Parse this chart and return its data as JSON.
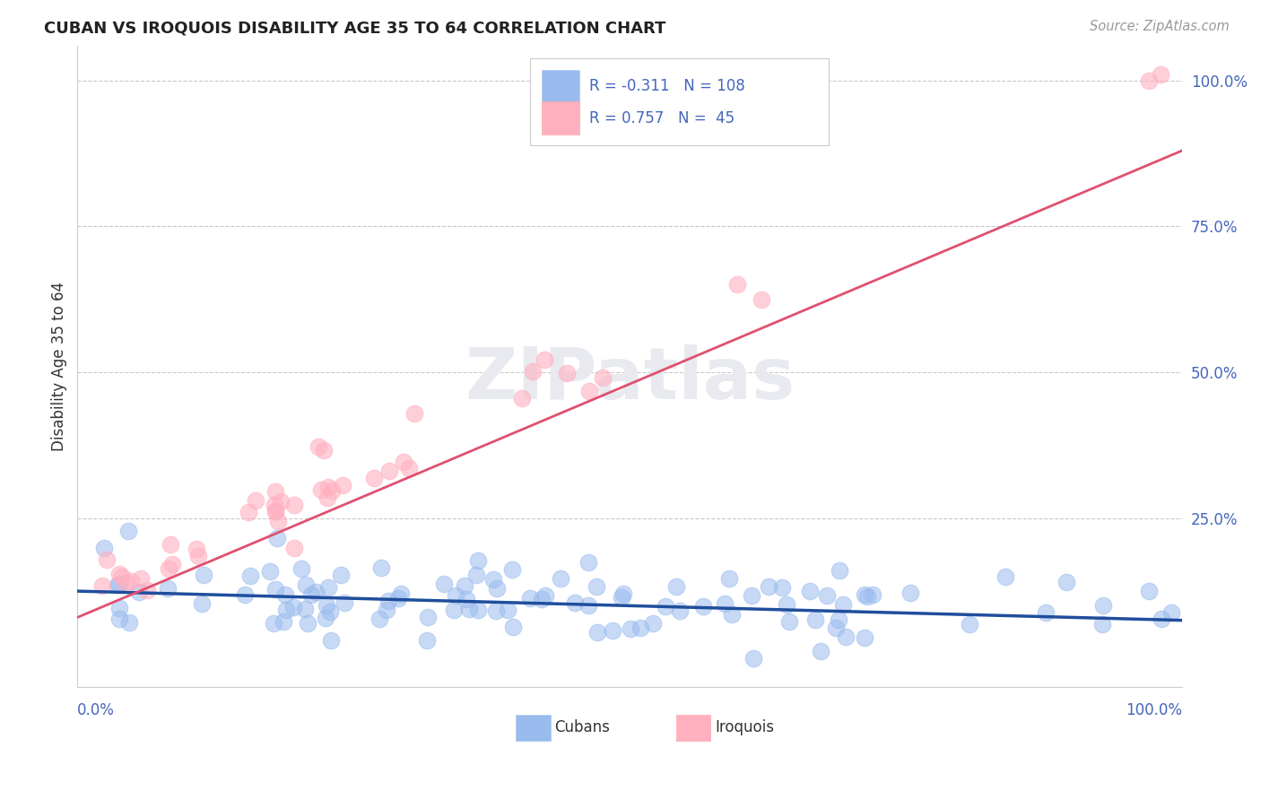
{
  "title": "CUBAN VS IROQUOIS DISABILITY AGE 35 TO 64 CORRELATION CHART",
  "source": "Source: ZipAtlas.com",
  "ylabel": "Disability Age 35 to 64",
  "legend_cubans": "Cubans",
  "legend_iroquois": "Iroquois",
  "cubans_R": -0.311,
  "cubans_N": 108,
  "iroquois_R": 0.757,
  "iroquois_N": 45,
  "blue_scatter_color": "#99BBEE",
  "pink_scatter_color": "#FFB0C0",
  "blue_line_color": "#1F4E9C",
  "pink_line_color": "#E05070",
  "title_color": "#222222",
  "source_color": "#999999",
  "label_color": "#4466BB",
  "axis_text_color": "#333333",
  "grid_color": "#BBBBBB",
  "background_color": "#FFFFFF",
  "watermark_color": "#E8EAF0",
  "ylim_min": -0.04,
  "ylim_max": 1.06,
  "xlim_min": 0.0,
  "xlim_max": 1.0,
  "ytick_values": [
    0.25,
    0.5,
    0.75,
    1.0
  ],
  "ytick_labels": [
    "25.0%",
    "50.0%",
    "75.0%",
    "100.0%"
  ]
}
